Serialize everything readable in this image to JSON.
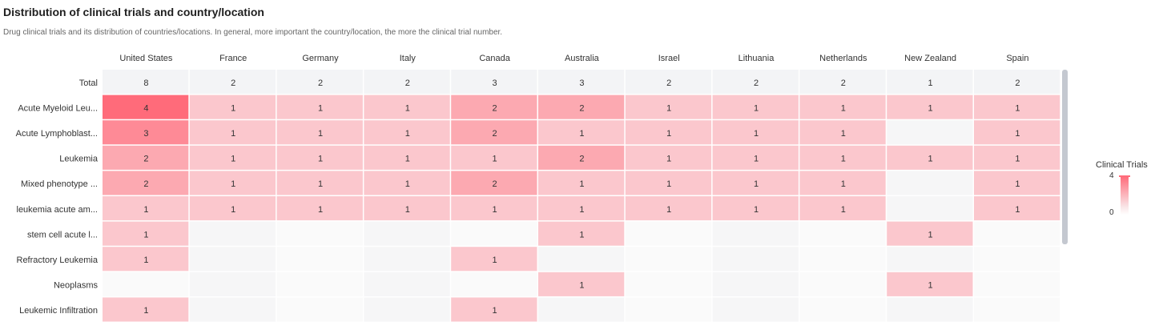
{
  "header": {
    "title": "Distribution of clinical trials and country/location",
    "subtitle": "Drug clinical trials and its distribution of countries/locations. In general, more important the country/location, the more the clinical trial number."
  },
  "legend": {
    "title": "Clinical Trials",
    "max_label": "4",
    "min_label": "0"
  },
  "colors": {
    "high": "#ff6b7a",
    "low": "#f9e6e8",
    "empty_odd": "#f6f6f7",
    "empty_even": "#fafafa",
    "total_row": "#f3f4f6",
    "scrollbar": "#c4c8d0"
  },
  "chart_data": {
    "type": "heatmap",
    "x": [
      "United States",
      "France",
      "Germany",
      "Italy",
      "Canada",
      "Australia",
      "Israel",
      "Lithuania",
      "Netherlands",
      "New Zealand",
      "Spain"
    ],
    "y": [
      "Total",
      "Acute Myeloid Leu...",
      "Acute Lymphoblast...",
      "Leukemia",
      "Mixed phenotype ...",
      "leukemia acute am...",
      "stem cell acute l...",
      "Refractory Leukemia",
      "Neoplasms",
      "Leukemic Infiltration"
    ],
    "values": [
      [
        8,
        2,
        2,
        2,
        3,
        3,
        2,
        2,
        2,
        1,
        2
      ],
      [
        4,
        1,
        1,
        1,
        2,
        2,
        1,
        1,
        1,
        1,
        1
      ],
      [
        3,
        1,
        1,
        1,
        2,
        1,
        1,
        1,
        1,
        null,
        1
      ],
      [
        2,
        1,
        1,
        1,
        1,
        2,
        1,
        1,
        1,
        1,
        1
      ],
      [
        2,
        1,
        1,
        1,
        2,
        1,
        1,
        1,
        1,
        null,
        1
      ],
      [
        1,
        1,
        1,
        1,
        1,
        1,
        1,
        1,
        1,
        null,
        1
      ],
      [
        1,
        null,
        null,
        null,
        null,
        1,
        null,
        null,
        null,
        1,
        null
      ],
      [
        1,
        null,
        null,
        null,
        1,
        null,
        null,
        null,
        null,
        null,
        null
      ],
      [
        null,
        null,
        null,
        null,
        null,
        1,
        null,
        null,
        null,
        1,
        null
      ],
      [
        1,
        null,
        null,
        null,
        1,
        null,
        null,
        null,
        null,
        null,
        null
      ]
    ],
    "color_range": [
      0,
      4
    ],
    "legend_title": "Clinical Trials"
  }
}
